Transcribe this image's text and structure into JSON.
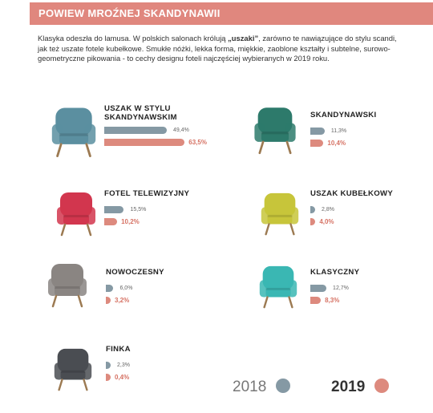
{
  "header": {
    "title": "POWIEW MROŹNEJ SKANDYNAWII"
  },
  "intro": {
    "part1": "Klasyka odeszła do lamusa. W polskich salonach królują ",
    "bold": "„uszaki”",
    "part2": ", zarówno te nawiązujące do stylu scandi, jak też uszate fotele kubełkowe. Smukłe nóżki, lekka forma, miękkie, zaoblone kształty i subtelne, surowo-geometryczne pikowania - to cechy designu foteli najczęściej wybieranych w 2019 roku."
  },
  "colors": {
    "accent": "#e0877e",
    "series2018": "#8599a4",
    "series2019": "#dd8a7e"
  },
  "chart_data": {
    "type": "bar",
    "title": "POWIEW MROŹNEJ SKANDYNAWII",
    "categories": [
      "USZAK W STYLU SKANDYNAWSKIM",
      "SKANDYNAWSKI",
      "FOTEL TELEWIZYJNY",
      "USZAK KUBEŁKOWY",
      "NOWOCZESNY",
      "KLASYCZNY",
      "FINKA"
    ],
    "series": [
      {
        "name": "2018",
        "values": [
          49.4,
          11.3,
          15.5,
          2.8,
          6.0,
          12.7,
          2.3
        ],
        "labels": [
          "49,4%",
          "11,3%",
          "15,5%",
          "2,8%",
          "6,0%",
          "12,7%",
          "2,3%"
        ]
      },
      {
        "name": "2019",
        "values": [
          63.5,
          10.4,
          10.2,
          4.0,
          3.2,
          8.3,
          0.4
        ],
        "labels": [
          "63,5%",
          "10,4%",
          "10,2%",
          "4,0%",
          "3,2%",
          "8,3%",
          "0,4%"
        ]
      }
    ],
    "legend": [
      "2018",
      "2019"
    ],
    "legend_position": "bottom-right",
    "chair_icons": [
      "wingback-chair-blue",
      "armchair-green",
      "recliner-red",
      "bucket-chair-yellow",
      "modern-chair-grey",
      "classic-chair-teal",
      "finka-chair-dark"
    ]
  }
}
